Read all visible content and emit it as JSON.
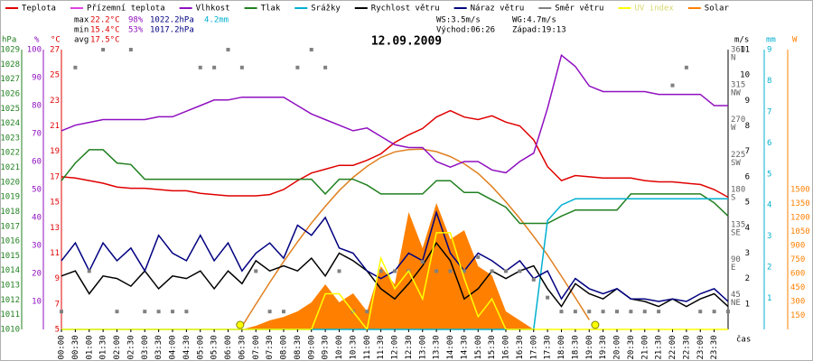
{
  "chart_data": {
    "type": "weather",
    "title": "12.09.2009",
    "time_label": "čas",
    "stats": [
      {
        "label": "max",
        "items": [
          "22.2°C",
          "98%",
          "1022.2hPa",
          "4.2mm"
        ]
      },
      {
        "label": "min",
        "items": [
          "15.4°C",
          "53%",
          "1017.2hPa"
        ]
      },
      {
        "label": "avg",
        "items": [
          "17.5°C"
        ]
      }
    ],
    "stat_colors": [
      "#e00000",
      "#9010c0",
      "#000080",
      "#00b0d0"
    ],
    "wind_info": [
      "WS:3.5m/s",
      "WG:4.7m/s"
    ],
    "sun": {
      "rise_label": "Východ:",
      "rise": "06:26",
      "set_label": "Západ:",
      "set": "19:13",
      "color": "#ffff00"
    },
    "xlim": [
      0,
      24
    ],
    "xticks": [
      {
        "value": 0,
        "label": "00:00"
      },
      {
        "value": 0.5,
        "label": "00:30"
      },
      {
        "value": 1,
        "label": "01:00"
      },
      {
        "value": 1.5,
        "label": "01:30"
      },
      {
        "value": 2,
        "label": "02:00"
      },
      {
        "value": 2.5,
        "label": "02:30"
      },
      {
        "value": 3,
        "label": "03:00"
      },
      {
        "value": 3.5,
        "label": "03:30"
      },
      {
        "value": 4,
        "label": "04:00"
      },
      {
        "value": 4.5,
        "label": "04:30"
      },
      {
        "value": 5,
        "label": "05:00"
      },
      {
        "value": 5.5,
        "label": "05:30"
      },
      {
        "value": 6,
        "label": "06:00"
      },
      {
        "value": 6.5,
        "label": "06:30"
      },
      {
        "value": 7,
        "label": "07:00"
      },
      {
        "value": 7.5,
        "label": "07:30"
      },
      {
        "value": 8,
        "label": "08:00"
      },
      {
        "value": 8.5,
        "label": "08:30"
      },
      {
        "value": 9,
        "label": "09:00"
      },
      {
        "value": 9.5,
        "label": "09:30"
      },
      {
        "value": 10,
        "label": "10:00"
      },
      {
        "value": 10.5,
        "label": "10:30"
      },
      {
        "value": 11,
        "label": "11:00"
      },
      {
        "value": 11.5,
        "label": "11:30"
      },
      {
        "value": 12,
        "label": "12:00"
      },
      {
        "value": 12.5,
        "label": "12:30"
      },
      {
        "value": 13,
        "label": "13:00"
      },
      {
        "value": 13.5,
        "label": "13:30"
      },
      {
        "value": 14,
        "label": "14:00"
      },
      {
        "value": 14.5,
        "label": "14:30"
      },
      {
        "value": 15,
        "label": "15:00"
      },
      {
        "value": 15.5,
        "label": "15:30"
      },
      {
        "value": 16,
        "label": "16:00"
      },
      {
        "value": 16.5,
        "label": "16:30"
      },
      {
        "value": 17,
        "label": "17:00"
      },
      {
        "value": 17.5,
        "label": "17:30"
      },
      {
        "value": 18,
        "label": "18:00"
      },
      {
        "value": 18.5,
        "label": "18:30"
      },
      {
        "value": 19,
        "label": "19:00"
      },
      {
        "value": 19.5,
        "label": "19:30"
      },
      {
        "value": 20,
        "label": "20:00"
      },
      {
        "value": 20.5,
        "label": "20:30"
      },
      {
        "value": 21,
        "label": "21:00"
      },
      {
        "value": 21.5,
        "label": "21:30"
      },
      {
        "value": 22,
        "label": "22:00"
      },
      {
        "value": 22.5,
        "label": "22:30"
      },
      {
        "value": 23,
        "label": "23:00"
      },
      {
        "value": 23.5,
        "label": "23:30"
      }
    ],
    "axes": {
      "hpa": {
        "label": "hPa",
        "color": "#208020",
        "lim": [
          1010,
          1029
        ],
        "ticks": [
          1010,
          1011,
          1012,
          1013,
          1014,
          1015,
          1016,
          1017,
          1018,
          1019,
          1020,
          1021,
          1022,
          1023,
          1024,
          1025,
          1026,
          1027,
          1028,
          1029
        ]
      },
      "pct": {
        "label": "%",
        "color": "#9010c0",
        "lim": [
          0,
          100
        ],
        "ticks": [
          10,
          20,
          30,
          40,
          50,
          60,
          70,
          80,
          90,
          100
        ]
      },
      "temp": {
        "label": "°C",
        "color": "#e00000",
        "lim": [
          5,
          27
        ],
        "ticks": [
          5,
          7,
          9,
          11,
          13,
          15,
          17,
          19,
          21,
          23,
          25,
          27
        ]
      },
      "dir": {
        "color": "#606060",
        "lim": [
          0,
          360
        ],
        "ticks": [
          45,
          90,
          135,
          180,
          225,
          270,
          315,
          360
        ],
        "tick_names": [
          "NE",
          "E",
          "SE",
          "S",
          "SW",
          "W",
          "NW",
          "N"
        ]
      },
      "ms": {
        "label": "m/s",
        "color": "#000000",
        "lim": [
          0,
          11
        ],
        "ticks": [
          1,
          2,
          3,
          4,
          5,
          6,
          7,
          8,
          9,
          10,
          11
        ]
      },
      "mm": {
        "label": "mm",
        "color": "#00b0d0",
        "lim": [
          0,
          9
        ],
        "ticks": [
          1,
          2,
          3,
          4,
          5,
          6,
          7,
          8,
          9
        ]
      },
      "w": {
        "label": "W",
        "color": "#ff8000",
        "lim": [
          0,
          3000
        ],
        "ticks": [
          150,
          300,
          450,
          600,
          750,
          900,
          1050,
          1200,
          1350,
          1500
        ]
      }
    },
    "x": [
      0,
      0.5,
      1,
      1.5,
      2,
      2.5,
      3,
      3.5,
      4,
      4.5,
      5,
      5.5,
      6,
      6.5,
      7,
      7.5,
      8,
      8.5,
      9,
      9.5,
      10,
      10.5,
      11,
      11.5,
      12,
      12.5,
      13,
      13.5,
      14,
      14.5,
      15,
      15.5,
      16,
      16.5,
      17,
      17.5,
      18,
      18.5,
      19,
      19.5,
      20,
      20.5,
      21,
      21.5,
      22,
      22.5,
      23,
      23.5,
      24
    ],
    "series": [
      {
        "name": "Teplota",
        "color": "#e00000",
        "axis": "temp",
        "kind": "line",
        "values": [
          17.0,
          16.9,
          16.7,
          16.5,
          16.2,
          16.1,
          16.1,
          16.0,
          15.9,
          15.9,
          15.7,
          15.6,
          15.5,
          15.5,
          15.5,
          15.6,
          16.0,
          16.7,
          17.3,
          17.6,
          17.9,
          17.9,
          18.3,
          18.8,
          19.7,
          20.3,
          20.8,
          21.7,
          22.2,
          21.7,
          21.5,
          21.8,
          21.3,
          21.0,
          19.9,
          17.8,
          16.7,
          17.1,
          17.0,
          16.9,
          16.9,
          16.9,
          16.7,
          16.6,
          16.6,
          16.5,
          16.4,
          16.0,
          15.4
        ]
      },
      {
        "name": "Přízemní teplota",
        "color": "#e040e0",
        "axis": "temp",
        "kind": "line"
      },
      {
        "name": "Vlhkost",
        "color": "#9010c0",
        "axis": "pct",
        "kind": "line",
        "values": [
          71,
          73,
          74,
          75,
          75,
          75,
          75,
          76,
          76,
          78,
          80,
          82,
          82,
          83,
          83,
          83,
          83,
          80,
          77,
          75,
          73,
          71,
          72,
          69,
          66,
          65,
          65,
          60,
          58,
          60,
          60,
          57,
          56,
          60,
          63,
          79,
          98,
          94,
          87,
          85,
          85,
          85,
          85,
          84,
          84,
          84,
          84,
          80,
          80
        ]
      },
      {
        "name": "Tlak",
        "color": "#208020",
        "axis": "hpa",
        "kind": "line",
        "values": [
          1020.1,
          1021.3,
          1022.2,
          1022.2,
          1021.3,
          1021.2,
          1020.2,
          1020.2,
          1020.2,
          1020.2,
          1020.2,
          1020.2,
          1020.2,
          1020.2,
          1020.2,
          1020.2,
          1020.2,
          1020.2,
          1020.2,
          1019.2,
          1020.2,
          1020.2,
          1019.8,
          1019.2,
          1019.2,
          1019.2,
          1019.2,
          1020.1,
          1020.1,
          1019.3,
          1019.3,
          1018.8,
          1018.3,
          1017.2,
          1017.2,
          1017.2,
          1017.7,
          1018.1,
          1018.1,
          1018.1,
          1018.1,
          1019.2,
          1019.2,
          1019.2,
          1019.2,
          1019.2,
          1019.2,
          1018.6,
          1017.7
        ]
      },
      {
        "name": "Srážky",
        "color": "#00b0d0",
        "axis": "mm",
        "kind": "line",
        "values": [
          0,
          0,
          0,
          0,
          0,
          0,
          0,
          0,
          0,
          0,
          0,
          0,
          0,
          0,
          0,
          0,
          0,
          0,
          0,
          0,
          0,
          0,
          0,
          0,
          0,
          0,
          0,
          0,
          0,
          0,
          0,
          0,
          0,
          0,
          0,
          3.5,
          4.0,
          4.2,
          4.2,
          4.2,
          4.2,
          4.2,
          4.2,
          4.2,
          4.2,
          4.2,
          4.2,
          4.2,
          4.2
        ]
      },
      {
        "name": "Rychlost větru",
        "color": "#000000",
        "axis": "ms",
        "kind": "line",
        "values": [
          2.1,
          2.3,
          1.4,
          2.1,
          2.0,
          1.7,
          2.3,
          1.6,
          2.1,
          2.0,
          2.3,
          1.6,
          2.3,
          1.8,
          2.7,
          2.3,
          2.5,
          2.3,
          2.8,
          2.1,
          3.0,
          2.7,
          2.3,
          1.6,
          1.2,
          1.8,
          2.5,
          3.4,
          2.7,
          1.2,
          1.6,
          2.3,
          2.0,
          2.3,
          2.5,
          1.6,
          0.9,
          1.8,
          1.4,
          1.2,
          1.6,
          1.2,
          1.1,
          0.9,
          1.2,
          0.9,
          1.2,
          1.4,
          0.9
        ]
      },
      {
        "name": "Náraz větru",
        "color": "#000080",
        "axis": "ms",
        "kind": "line",
        "values": [
          2.7,
          3.4,
          2.3,
          3.4,
          2.7,
          3.2,
          2.3,
          3.7,
          3.0,
          2.7,
          3.7,
          2.7,
          3.4,
          2.3,
          3.0,
          3.4,
          2.8,
          4.1,
          3.7,
          4.4,
          3.2,
          3.0,
          2.3,
          2.0,
          2.3,
          3.0,
          2.7,
          4.6,
          3.0,
          2.3,
          3.0,
          2.7,
          2.3,
          2.7,
          2.0,
          2.3,
          1.2,
          2.0,
          1.6,
          1.4,
          1.6,
          1.2,
          1.2,
          1.1,
          1.2,
          1.1,
          1.4,
          1.6,
          1.1
        ]
      },
      {
        "name": "Směr větru",
        "color": "#808080",
        "axis": "dir",
        "kind": "points",
        "values": [
          23,
          337,
          75,
          360,
          23,
          360,
          23,
          23,
          23,
          23,
          337,
          337,
          360,
          337,
          75,
          23,
          23,
          337,
          360,
          337,
          75,
          23,
          23,
          75,
          75,
          75,
          87,
          75,
          75,
          75,
          93,
          75,
          75,
          75,
          64,
          41,
          23,
          23,
          23,
          23,
          23,
          23,
          23,
          23,
          314,
          337,
          23,
          23,
          23
        ]
      },
      {
        "name": "UV index",
        "color": "#ffff00",
        "axis": "ms",
        "kind": "line",
        "values": [
          0,
          0,
          0,
          0,
          0,
          0,
          0,
          0,
          0,
          0,
          0,
          0,
          0,
          0,
          0,
          0,
          0,
          0,
          0,
          1.4,
          1.4,
          0.7,
          0,
          2.8,
          1.6,
          2.3,
          1.2,
          3.8,
          3.8,
          2.0,
          0.5,
          1.2,
          0,
          0,
          0,
          0,
          0,
          0,
          0,
          0,
          0,
          0,
          0,
          0,
          0,
          0,
          0,
          0,
          0
        ]
      },
      {
        "name": "Solar",
        "color": "#ff8000",
        "axis": "w",
        "kind": "area",
        "values": [
          0,
          0,
          0,
          0,
          0,
          0,
          0,
          0,
          0,
          0,
          0,
          0,
          0,
          0,
          39,
          97,
          135,
          194,
          290,
          484,
          290,
          387,
          194,
          677,
          484,
          1258,
          871,
          1355,
          968,
          1064,
          677,
          580,
          194,
          97,
          0,
          0,
          0,
          0,
          0,
          0,
          0,
          0,
          0,
          0,
          0,
          0,
          0,
          0,
          0
        ]
      }
    ],
    "solar_max": {
      "color": "#e08020",
      "axis": "w",
      "x": [
        6.5,
        7,
        7.5,
        8,
        8.5,
        9,
        9.5,
        10,
        10.5,
        11,
        11.5,
        12,
        12.5,
        13,
        13.5,
        14,
        14.5,
        15,
        15.5,
        16,
        16.5,
        17,
        17.5,
        18,
        18.5,
        19
      ],
      "values": [
        33,
        271,
        503,
        728,
        938,
        1141,
        1320,
        1488,
        1631,
        1748,
        1844,
        1904,
        1929,
        1933,
        1906,
        1853,
        1776,
        1672,
        1532,
        1368,
        1190,
        997,
        797,
        571,
        340,
        104
      ]
    }
  }
}
